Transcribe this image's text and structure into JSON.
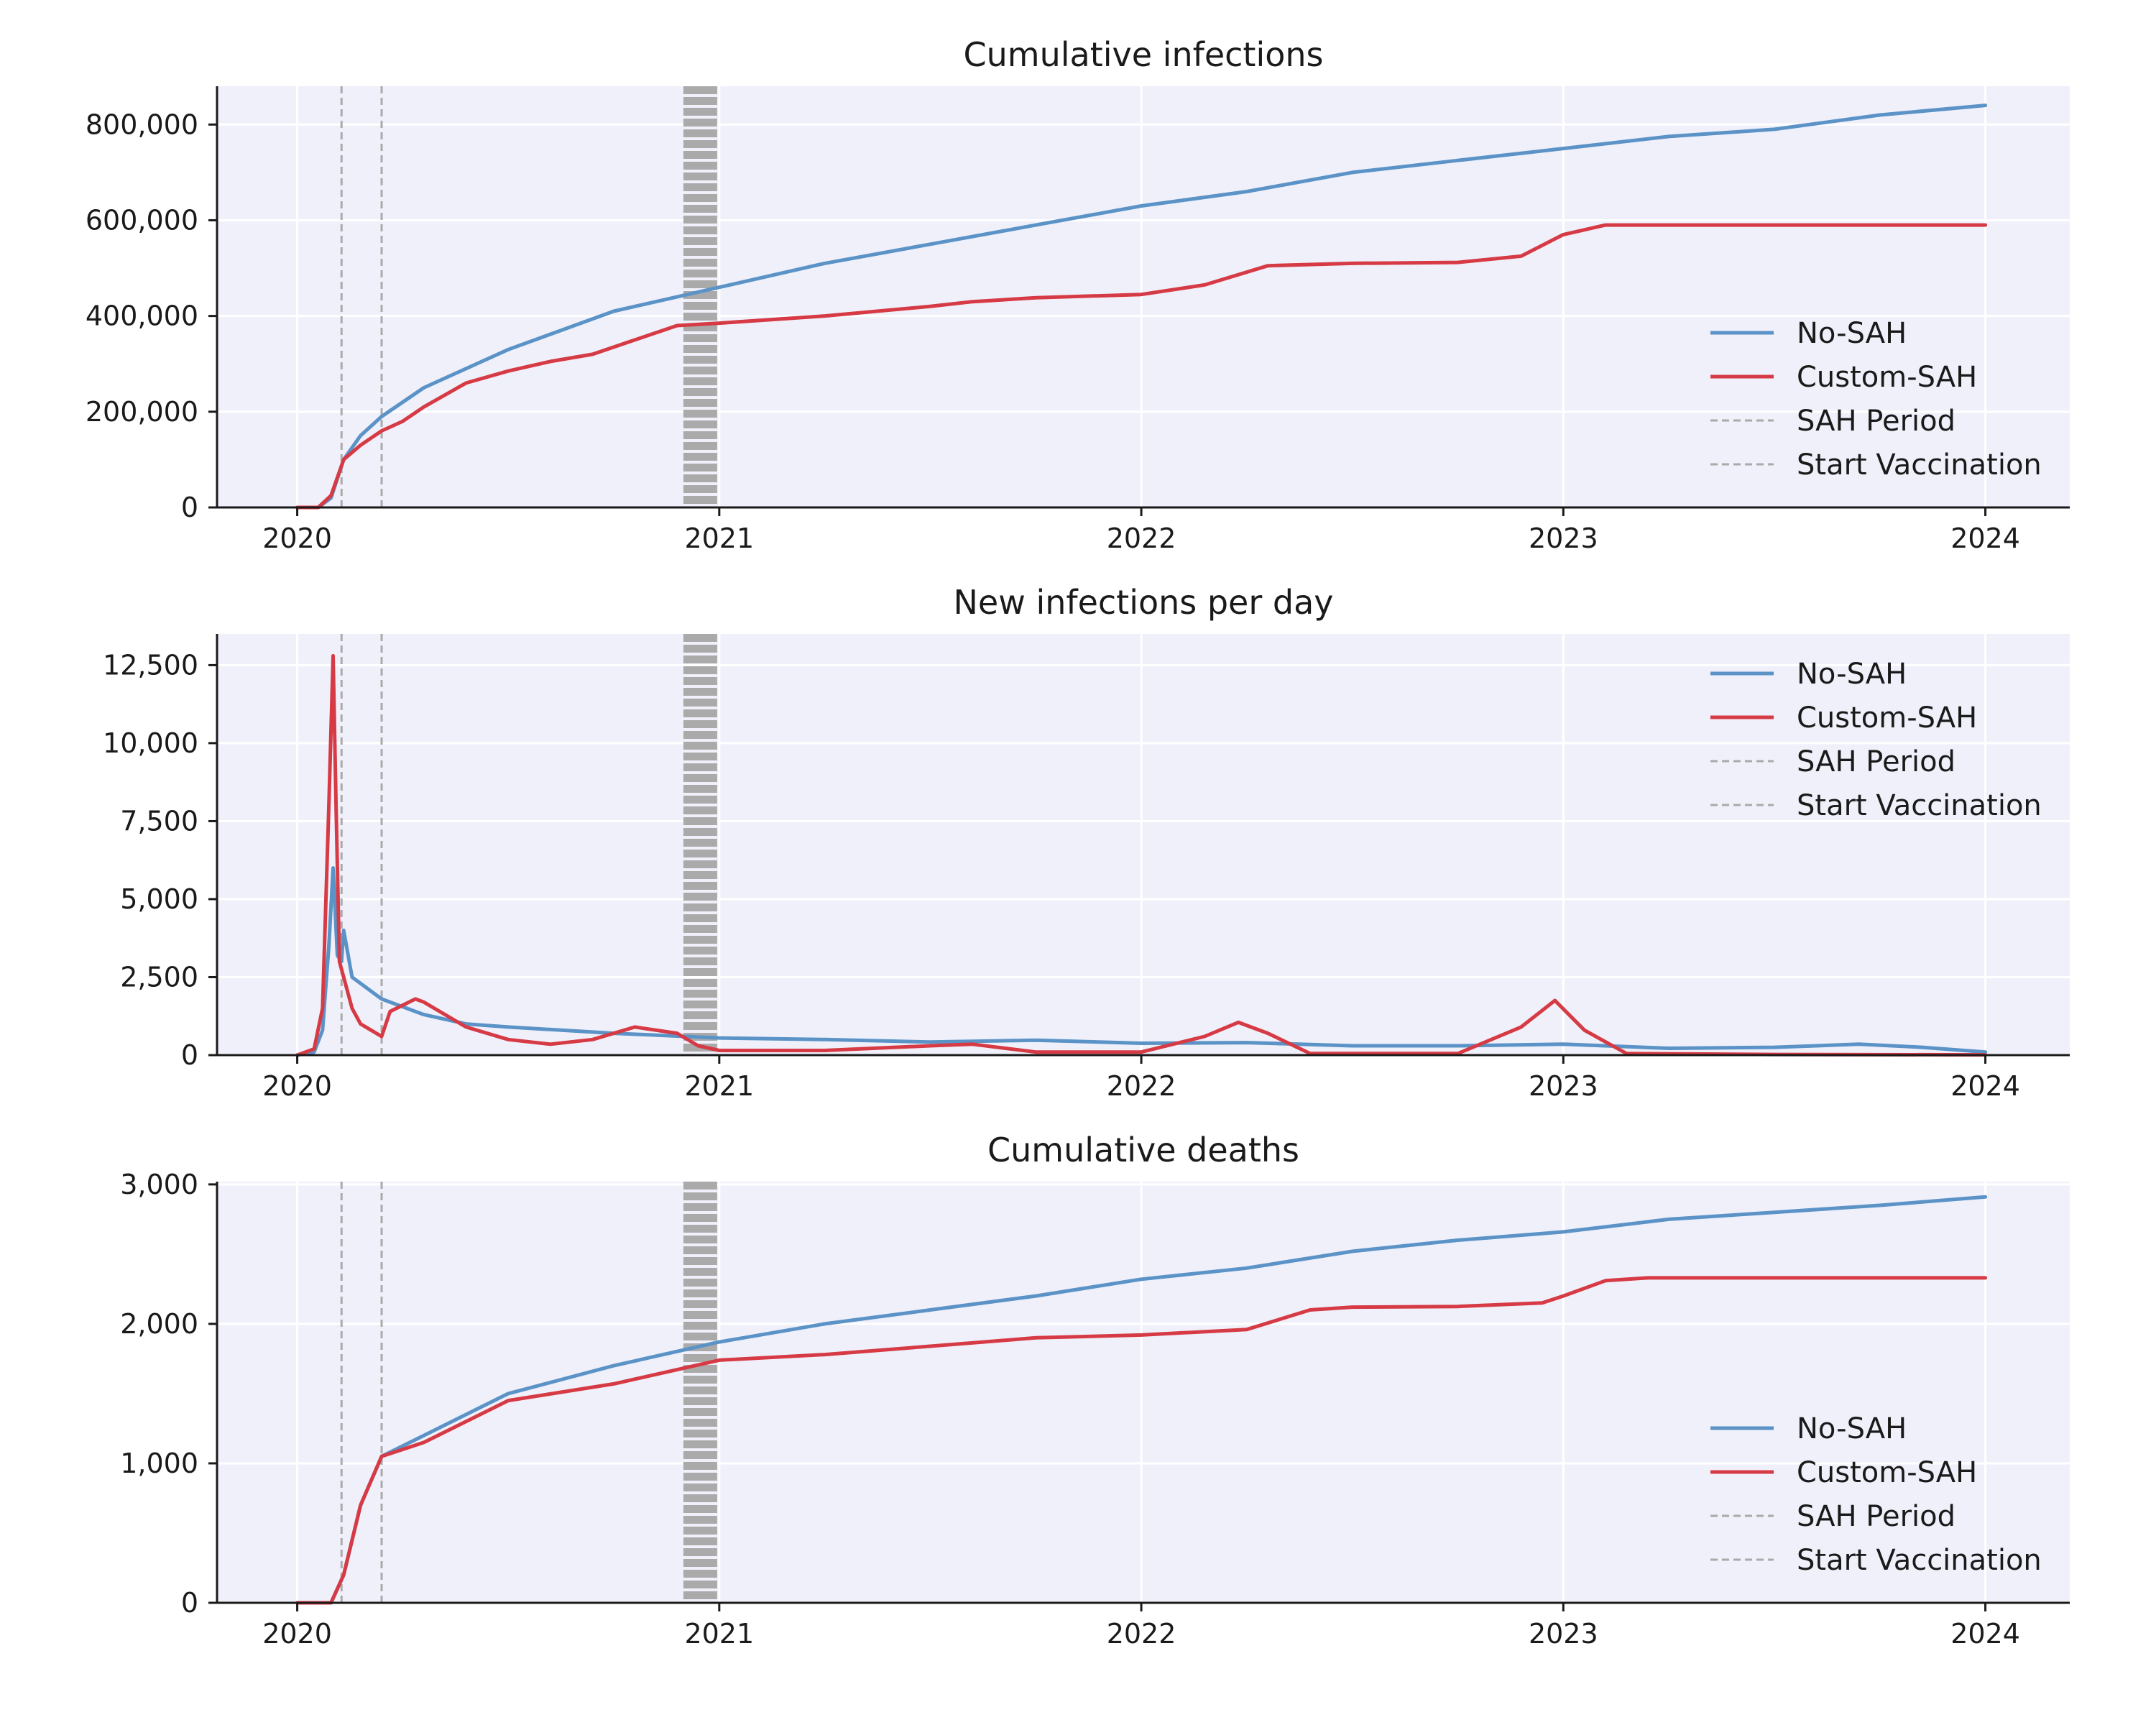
{
  "chart_data": [
    {
      "type": "line",
      "title": "Cumulative infections",
      "xlabel": "",
      "ylabel": "",
      "xlim": [
        2019.81,
        2024.2
      ],
      "ylim": [
        0,
        880000
      ],
      "x_ticks": [
        2020,
        2021,
        2022,
        2023,
        2024
      ],
      "y_ticks": [
        0,
        200000,
        400000,
        600000,
        800000
      ],
      "x_tick_labels": [
        "2020",
        "2021",
        "2022",
        "2023",
        "2024"
      ],
      "y_tick_labels": [
        "0",
        "200,000",
        "400,000",
        "600,000",
        "800,000"
      ],
      "grid": true,
      "legend_position": "lower-right",
      "series": [
        {
          "name": "No-SAH",
          "color": "#5b93c7",
          "x": [
            2020.0,
            2020.05,
            2020.08,
            2020.11,
            2020.15,
            2020.2,
            2020.3,
            2020.5,
            2020.75,
            2021.0,
            2021.25,
            2021.5,
            2021.75,
            2022.0,
            2022.25,
            2022.5,
            2022.75,
            2023.0,
            2023.25,
            2023.5,
            2023.75,
            2024.0
          ],
          "y": [
            0,
            0,
            20000,
            100000,
            150000,
            190000,
            250000,
            330000,
            410000,
            460000,
            510000,
            550000,
            590000,
            630000,
            660000,
            700000,
            725000,
            750000,
            775000,
            790000,
            820000,
            840000
          ]
        },
        {
          "name": "Custom-SAH",
          "color": "#d63b45",
          "x": [
            2020.0,
            2020.05,
            2020.08,
            2020.11,
            2020.15,
            2020.2,
            2020.25,
            2020.3,
            2020.4,
            2020.5,
            2020.6,
            2020.7,
            2020.8,
            2020.9,
            2021.0,
            2021.25,
            2021.5,
            2021.6,
            2021.75,
            2022.0,
            2022.15,
            2022.3,
            2022.5,
            2022.75,
            2022.9,
            2023.0,
            2023.1,
            2023.25,
            2023.5,
            2023.75,
            2024.0
          ],
          "y": [
            0,
            0,
            25000,
            100000,
            130000,
            160000,
            180000,
            210000,
            260000,
            285000,
            305000,
            320000,
            350000,
            380000,
            385000,
            400000,
            420000,
            430000,
            438000,
            445000,
            465000,
            505000,
            510000,
            512000,
            525000,
            570000,
            590000,
            590000,
            590000,
            590000,
            590000
          ]
        }
      ],
      "annotations": [
        {
          "name": "SAH Period",
          "style": "dashed",
          "color": "#aaaaaa",
          "x": [
            2020.105,
            2020.2
          ]
        },
        {
          "name": "Start Vaccination",
          "style": "dashed",
          "color": "#aaaaaa",
          "x_range": [
            2020.915,
            2020.995
          ]
        }
      ]
    },
    {
      "type": "line",
      "title": "New infections per day",
      "xlabel": "",
      "ylabel": "",
      "xlim": [
        2019.81,
        2024.2
      ],
      "ylim": [
        0,
        13500
      ],
      "x_ticks": [
        2020,
        2021,
        2022,
        2023,
        2024
      ],
      "y_ticks": [
        0,
        2500,
        5000,
        7500,
        10000,
        12500
      ],
      "x_tick_labels": [
        "2020",
        "2021",
        "2022",
        "2023",
        "2024"
      ],
      "y_tick_labels": [
        "0",
        "2,500",
        "5,000",
        "7,500",
        "10,000",
        "12,500"
      ],
      "grid": true,
      "legend_position": "upper-right",
      "series": [
        {
          "name": "No-SAH",
          "color": "#5b93c7",
          "x": [
            2020.0,
            2020.04,
            2020.06,
            2020.075,
            2020.085,
            2020.095,
            2020.105,
            2020.11,
            2020.13,
            2020.2,
            2020.3,
            2020.4,
            2020.5,
            2020.75,
            2021.0,
            2021.25,
            2021.5,
            2021.75,
            2022.0,
            2022.25,
            2022.5,
            2022.75,
            2023.0,
            2023.25,
            2023.5,
            2023.7,
            2023.85,
            2024.0
          ],
          "y": [
            0,
            100,
            800,
            3500,
            6000,
            3200,
            3000,
            4000,
            2500,
            1800,
            1300,
            1000,
            900,
            700,
            550,
            500,
            420,
            480,
            380,
            400,
            300,
            300,
            350,
            220,
            250,
            350,
            250,
            100
          ]
        },
        {
          "name": "Custom-SAH",
          "color": "#d63b45",
          "x": [
            2020.0,
            2020.04,
            2020.06,
            2020.075,
            2020.085,
            2020.092,
            2020.1,
            2020.11,
            2020.13,
            2020.15,
            2020.2,
            2020.22,
            2020.28,
            2020.3,
            2020.4,
            2020.5,
            2020.6,
            2020.7,
            2020.8,
            2020.9,
            2020.95,
            2021.0,
            2021.25,
            2021.5,
            2021.6,
            2021.75,
            2022.0,
            2022.15,
            2022.23,
            2022.3,
            2022.4,
            2022.75,
            2022.9,
            2022.98,
            2023.05,
            2023.15,
            2023.5,
            2024.0
          ],
          "y": [
            0,
            200,
            1500,
            8000,
            12800,
            8000,
            3000,
            2500,
            1500,
            1000,
            600,
            1400,
            1800,
            1700,
            900,
            500,
            350,
            500,
            900,
            700,
            300,
            150,
            150,
            300,
            350,
            100,
            100,
            600,
            1050,
            700,
            50,
            50,
            900,
            1750,
            800,
            50,
            20,
            10
          ]
        }
      ],
      "annotations": [
        {
          "name": "SAH Period",
          "style": "dashed",
          "color": "#aaaaaa",
          "x": [
            2020.105,
            2020.2
          ]
        },
        {
          "name": "Start Vaccination",
          "style": "dashed",
          "color": "#aaaaaa",
          "x_range": [
            2020.915,
            2020.995
          ]
        }
      ]
    },
    {
      "type": "line",
      "title": "Cumulative deaths",
      "xlabel": "",
      "ylabel": "",
      "xlim": [
        2019.81,
        2024.2
      ],
      "ylim": [
        0,
        3020
      ],
      "x_ticks": [
        2020,
        2021,
        2022,
        2023,
        2024
      ],
      "y_ticks": [
        0,
        1000,
        2000,
        3000
      ],
      "x_tick_labels": [
        "2020",
        "2021",
        "2022",
        "2023",
        "2024"
      ],
      "y_tick_labels": [
        "0",
        "1,000",
        "2,000",
        "3,000"
      ],
      "grid": true,
      "legend_position": "lower-right",
      "series": [
        {
          "name": "No-SAH",
          "color": "#5b93c7",
          "x": [
            2020.0,
            2020.08,
            2020.11,
            2020.15,
            2020.2,
            2020.3,
            2020.5,
            2020.75,
            2021.0,
            2021.25,
            2021.5,
            2021.75,
            2022.0,
            2022.25,
            2022.5,
            2022.75,
            2023.0,
            2023.25,
            2023.5,
            2023.75,
            2024.0
          ],
          "y": [
            0,
            0,
            200,
            700,
            1050,
            1200,
            1500,
            1700,
            1870,
            2000,
            2100,
            2200,
            2320,
            2400,
            2520,
            2600,
            2660,
            2750,
            2800,
            2850,
            2910
          ]
        },
        {
          "name": "Custom-SAH",
          "color": "#d63b45",
          "x": [
            2020.0,
            2020.08,
            2020.11,
            2020.15,
            2020.2,
            2020.3,
            2020.5,
            2020.75,
            2021.0,
            2021.25,
            2021.5,
            2021.75,
            2022.0,
            2022.25,
            2022.4,
            2022.5,
            2022.75,
            2022.95,
            2023.0,
            2023.1,
            2023.2,
            2023.5,
            2024.0
          ],
          "y": [
            0,
            0,
            200,
            700,
            1050,
            1150,
            1450,
            1570,
            1740,
            1780,
            1840,
            1900,
            1920,
            1960,
            2100,
            2120,
            2125,
            2150,
            2200,
            2310,
            2330,
            2330,
            2330
          ]
        }
      ],
      "annotations": [
        {
          "name": "SAH Period",
          "style": "dashed",
          "color": "#aaaaaa",
          "x": [
            2020.105,
            2020.2
          ]
        },
        {
          "name": "Start Vaccination",
          "style": "dashed",
          "color": "#aaaaaa",
          "x_range": [
            2020.915,
            2020.995
          ]
        }
      ]
    }
  ]
}
